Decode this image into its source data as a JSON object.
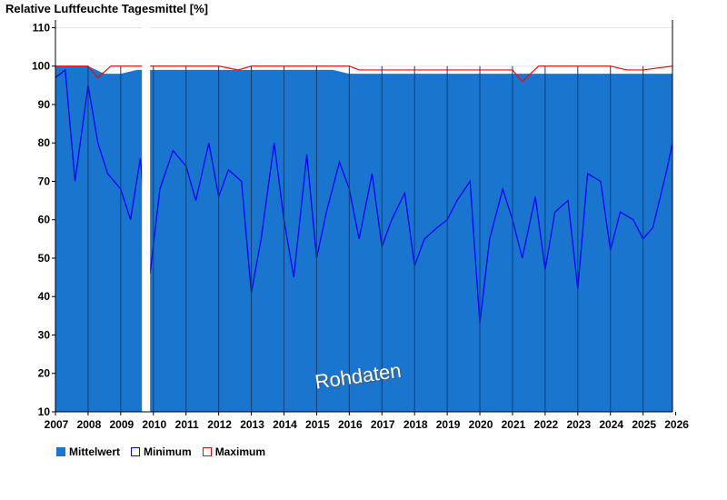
{
  "chart_data": {
    "type": "area",
    "title": "Relative Luftfeuchte Tagesmittel [%]",
    "xlabel": "",
    "ylabel": "",
    "xlim": [
      2007.0,
      2025.9
    ],
    "ylim": [
      10,
      112
    ],
    "y_ticks": [
      10,
      20,
      30,
      40,
      50,
      60,
      70,
      80,
      90,
      100,
      110
    ],
    "x_tick_labels": [
      "2007",
      "2008",
      "2009",
      "2010",
      "2011",
      "2012",
      "2013",
      "2014",
      "2015",
      "2016",
      "2017",
      "2018",
      "2019",
      "2020",
      "2021",
      "2022",
      "2023",
      "2024",
      "2025",
      "2026"
    ],
    "x_tick_positions": [
      2007,
      2008,
      2009,
      2010,
      2011,
      2012,
      2013,
      2014,
      2015,
      2016,
      2017,
      2018,
      2019,
      2020,
      2021,
      2022,
      2023,
      2024,
      2025,
      2026
    ],
    "data_gap": [
      2009.65,
      2009.9
    ],
    "annotation": "Rohdaten",
    "colors": {
      "Mittelwert": "#1a75cf",
      "Minimum": "#0000ff",
      "Maximum": "#ff0000",
      "year_divider": "#0b3f7a"
    },
    "series": [
      {
        "name": "Mittelwert",
        "x": [
          2007.0,
          2007.5,
          2008.0,
          2008.5,
          2009.0,
          2009.5,
          2009.65,
          2009.9,
          2010.5,
          2011.0,
          2011.5,
          2012.0,
          2012.5,
          2013.0,
          2013.5,
          2014.0,
          2014.5,
          2015.0,
          2015.5,
          2016.0,
          2016.5,
          2017.0,
          2017.5,
          2018.0,
          2018.5,
          2019.0,
          2019.5,
          2020.0,
          2020.5,
          2021.0,
          2021.5,
          2022.0,
          2022.5,
          2023.0,
          2023.5,
          2024.0,
          2024.5,
          2025.0,
          2025.5,
          2025.9
        ],
        "values": [
          100,
          100,
          100,
          98,
          98,
          99,
          99,
          99,
          99,
          99,
          99,
          99,
          99,
          99,
          99,
          99,
          99,
          99,
          99,
          98,
          98,
          98,
          98,
          98,
          98,
          98,
          98,
          98,
          98,
          98,
          98,
          98,
          98,
          98,
          98,
          98,
          98,
          98,
          98,
          98
        ]
      },
      {
        "name": "Minimum",
        "x": [
          2007.0,
          2007.3,
          2007.6,
          2008.0,
          2008.3,
          2008.6,
          2009.0,
          2009.3,
          2009.6,
          2009.9,
          2010.2,
          2010.6,
          2011.0,
          2011.3,
          2011.7,
          2012.0,
          2012.3,
          2012.7,
          2013.0,
          2013.3,
          2013.7,
          2014.0,
          2014.3,
          2014.7,
          2015.0,
          2015.3,
          2015.7,
          2016.0,
          2016.3,
          2016.7,
          2017.0,
          2017.3,
          2017.7,
          2018.0,
          2018.3,
          2018.7,
          2019.0,
          2019.3,
          2019.7,
          2020.0,
          2020.3,
          2020.7,
          2021.0,
          2021.3,
          2021.7,
          2022.0,
          2022.3,
          2022.7,
          2023.0,
          2023.3,
          2023.7,
          2024.0,
          2024.3,
          2024.7,
          2025.0,
          2025.3,
          2025.7,
          2025.9
        ],
        "values": [
          97,
          99,
          70,
          95,
          80,
          72,
          68,
          60,
          76,
          46,
          68,
          78,
          74,
          65,
          80,
          66,
          73,
          70,
          41,
          55,
          80,
          60,
          45,
          77,
          50,
          62,
          75,
          68,
          55,
          72,
          53,
          60,
          67,
          48,
          55,
          58,
          60,
          65,
          70,
          33,
          55,
          68,
          60,
          50,
          66,
          47,
          62,
          65,
          42,
          72,
          70,
          52,
          62,
          60,
          55,
          58,
          72,
          80
        ]
      },
      {
        "name": "Maximum",
        "x": [
          2007.0,
          2008.0,
          2008.3,
          2008.7,
          2009.0,
          2009.6,
          2009.9,
          2010.5,
          2011.0,
          2012.0,
          2012.6,
          2013.0,
          2014.0,
          2015.0,
          2016.0,
          2016.3,
          2017.0,
          2018.0,
          2019.0,
          2020.0,
          2020.8,
          2021.0,
          2021.3,
          2021.8,
          2022.0,
          2023.0,
          2024.0,
          2024.5,
          2025.0,
          2025.9
        ],
        "values": [
          100,
          100,
          97,
          100,
          100,
          100,
          100,
          100,
          100,
          100,
          99,
          100,
          100,
          100,
          100,
          99,
          99,
          99,
          99,
          99,
          99,
          99,
          96,
          100,
          100,
          100,
          100,
          99,
          99,
          100
        ]
      }
    ]
  }
}
